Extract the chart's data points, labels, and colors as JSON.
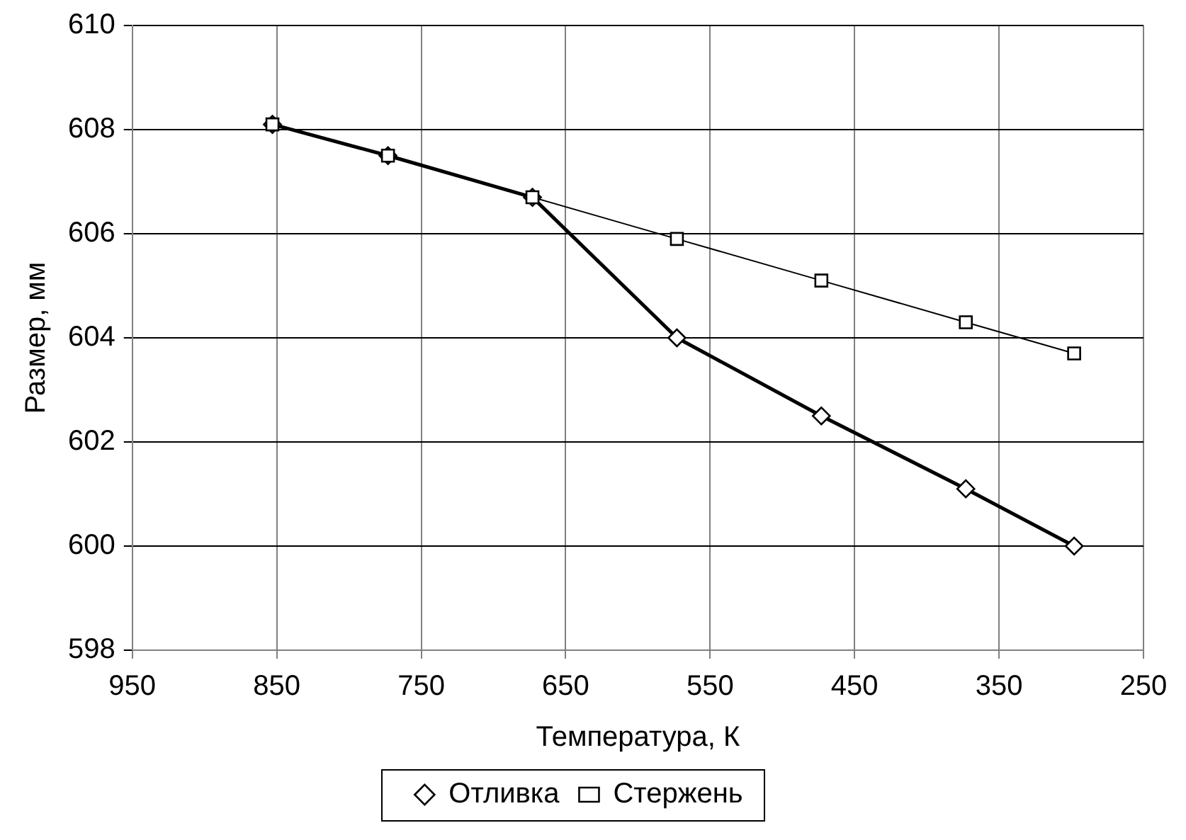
{
  "chart_data": {
    "type": "line",
    "xlabel": "Температура, К",
    "ylabel": "Размер, мм",
    "x": [
      853,
      773,
      673,
      573,
      473,
      373,
      298
    ],
    "series": [
      {
        "name": "Отливка",
        "color": "#000000",
        "marker": "diamond",
        "values": [
          608.1,
          607.5,
          606.7,
          604.0,
          602.5,
          601.1,
          600.0
        ]
      },
      {
        "name": "Стержень",
        "color": "#000000",
        "marker": "square",
        "values": [
          608.1,
          607.5,
          606.7,
          605.9,
          605.1,
          604.3,
          603.7
        ]
      }
    ],
    "xlim": [
      950,
      250
    ],
    "xticks": [
      950,
      850,
      750,
      650,
      550,
      450,
      350,
      250
    ],
    "ylim": [
      598,
      610
    ],
    "yticks": [
      598,
      600,
      602,
      604,
      606,
      608,
      610
    ],
    "grid": true,
    "legend": "bottom",
    "line_style": "solid"
  }
}
